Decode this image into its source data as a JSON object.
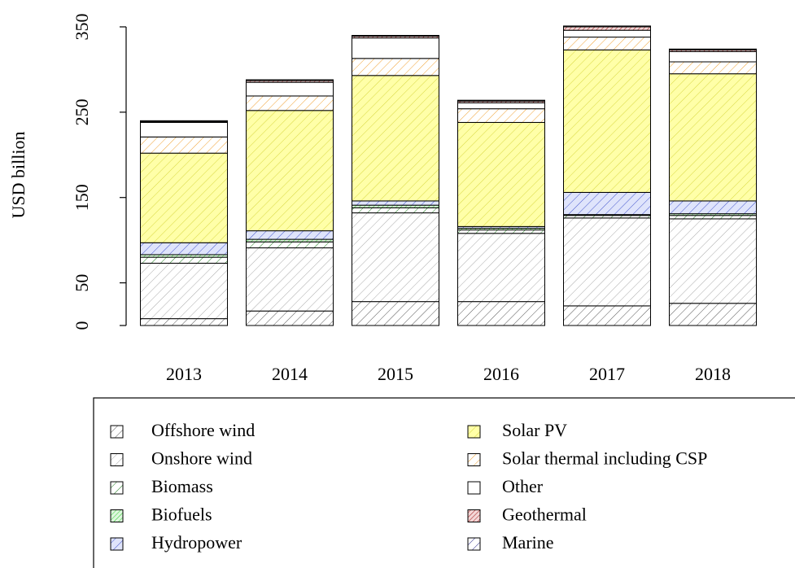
{
  "chart_data": {
    "type": "stacked_bar",
    "ylabel": "USD billion",
    "categories": [
      "2013",
      "2014",
      "2015",
      "2016",
      "2017",
      "2018"
    ],
    "ylim": [
      0,
      350
    ],
    "yticks": [
      0,
      50,
      150,
      250,
      350
    ],
    "series": [
      {
        "name": "Offshore wind",
        "color": "#555555",
        "fill": "#ffffff",
        "values": [
          8,
          17,
          28,
          28,
          23,
          26
        ]
      },
      {
        "name": "Onshore wind",
        "color": "#aaaaaa",
        "fill": "#ffffff",
        "values": [
          65,
          74,
          104,
          80,
          103,
          99
        ]
      },
      {
        "name": "Biomass",
        "color": "#1a7a1a",
        "fill": "#ffffff",
        "values": [
          7,
          7,
          6,
          4,
          3,
          4
        ]
      },
      {
        "name": "Biofuels",
        "color": "#33cc33",
        "fill": "#ddf7dd",
        "values": [
          3,
          3,
          3,
          2,
          1,
          2
        ]
      },
      {
        "name": "Hydropower",
        "color": "#4455cc",
        "fill": "#dfe4fb",
        "values": [
          14,
          10,
          5,
          2,
          26,
          15
        ]
      },
      {
        "name": "Solar PV",
        "color": "#d8d840",
        "fill": "#ffffa8",
        "values": [
          105,
          141,
          147,
          122,
          167,
          149
        ]
      },
      {
        "name": "Solar thermal including CSP",
        "color": "#f0a030",
        "fill": "#ffffff",
        "values": [
          19,
          17,
          20,
          16,
          15,
          14
        ]
      },
      {
        "name": "Other",
        "color": "#ffffff",
        "fill": "#ffffff",
        "values": [
          17,
          16,
          24,
          7,
          8,
          12
        ]
      },
      {
        "name": "Geothermal",
        "color": "#a01818",
        "fill": "#f3d6d6",
        "values": [
          1,
          2,
          2,
          2,
          4,
          2
        ]
      },
      {
        "name": "Marine",
        "color": "#1a1a80",
        "fill": "#ffffff",
        "values": [
          1,
          1,
          1,
          1,
          1,
          1
        ]
      }
    ]
  }
}
